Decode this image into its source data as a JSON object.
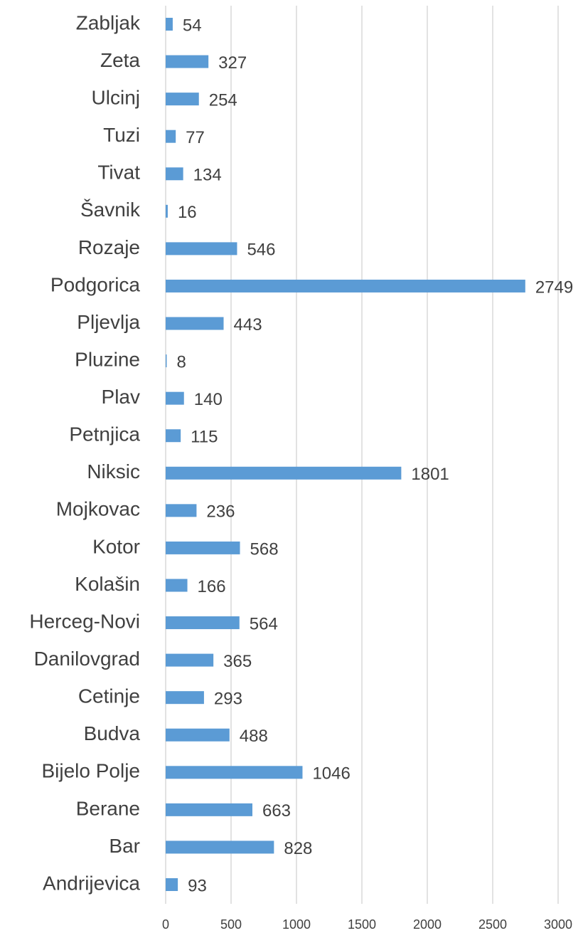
{
  "chart_data": {
    "type": "bar",
    "orientation": "horizontal",
    "categories": [
      "Zabljak",
      "Zeta",
      "Ulcinj",
      "Tuzi",
      "Tivat",
      "Šavnik",
      "Rozaje",
      "Podgorica",
      "Pljevlja",
      "Pluzine",
      "Plav",
      "Petnjica",
      "Niksic",
      "Mojkovac",
      "Kotor",
      "Kolašin",
      "Herceg-Novi",
      "Danilovgrad",
      "Cetinje",
      "Budva",
      "Bijelo Polje",
      "Berane",
      "Bar",
      "Andrijevica"
    ],
    "values": [
      54,
      327,
      254,
      77,
      134,
      16,
      546,
      2749,
      443,
      8,
      140,
      115,
      1801,
      236,
      568,
      166,
      564,
      365,
      293,
      488,
      1046,
      663,
      828,
      93
    ],
    "color": "#5b9bd5",
    "xlim": [
      0,
      3000
    ],
    "xticks": [
      0,
      500,
      1000,
      1500,
      2000,
      2500,
      3000
    ],
    "grid": true
  }
}
